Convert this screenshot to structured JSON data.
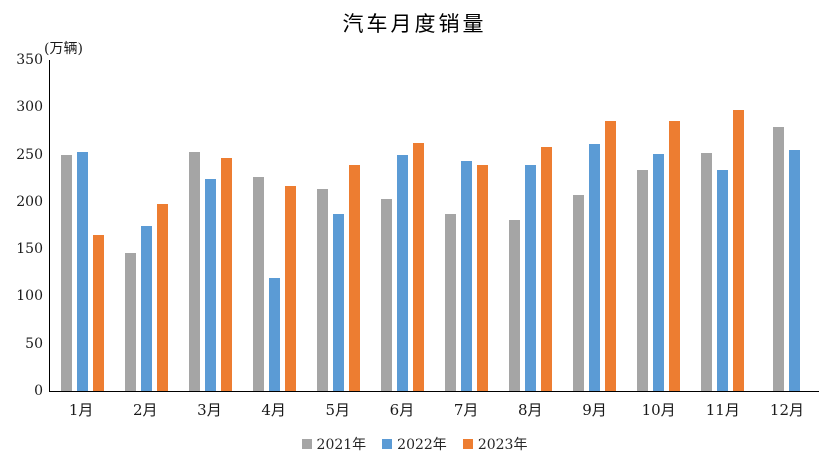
{
  "chart_data": {
    "type": "bar",
    "title": "汽车月度销量",
    "unit_label": "(万辆)",
    "categories": [
      "1月",
      "2月",
      "3月",
      "4月",
      "5月",
      "6月",
      "7月",
      "8月",
      "9月",
      "10月",
      "11月",
      "12月"
    ],
    "series": [
      {
        "name": "2021年",
        "color": "#A5A5A5",
        "values": [
          250,
          146,
          253,
          226,
          214,
          203,
          187,
          181,
          207,
          234,
          252,
          279
        ]
      },
      {
        "name": "2022年",
        "color": "#5B9BD5",
        "values": [
          253,
          174,
          224,
          119,
          187,
          250,
          243,
          239,
          261,
          251,
          234,
          255
        ]
      },
      {
        "name": "2023年",
        "color": "#ED7D31",
        "values": [
          165,
          198,
          246,
          217,
          239,
          262,
          239,
          258,
          286,
          286,
          297,
          null
        ]
      }
    ],
    "xlabel": "",
    "ylabel": "",
    "ylim": [
      0,
      350
    ],
    "y_ticks": [
      0,
      50,
      100,
      150,
      200,
      250,
      300,
      350
    ],
    "grid": false,
    "legend_position": "bottom",
    "axis_color": "#000000",
    "text_color": "#262626"
  }
}
